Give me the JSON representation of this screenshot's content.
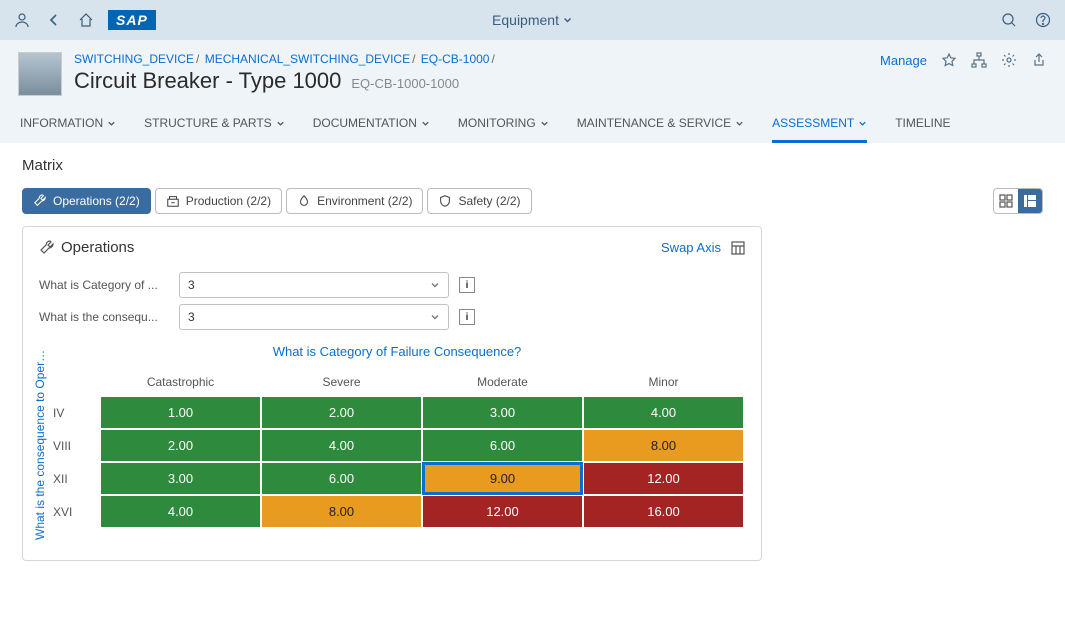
{
  "topbar": {
    "title": "Equipment",
    "logo": "SAP"
  },
  "header": {
    "breadcrumb": [
      "SWITCHING_DEVICE",
      "MECHANICAL_SWITCHING_DEVICE",
      "EQ-CB-1000"
    ],
    "title": "Circuit Breaker - Type 1000",
    "subtitle": "EQ-CB-1000-1000",
    "manage_label": "Manage"
  },
  "nav": {
    "tabs": [
      {
        "label": "INFORMATION",
        "chevron": true
      },
      {
        "label": "STRUCTURE & PARTS",
        "chevron": true
      },
      {
        "label": "DOCUMENTATION",
        "chevron": true
      },
      {
        "label": "MONITORING",
        "chevron": true
      },
      {
        "label": "MAINTENANCE & SERVICE",
        "chevron": true
      },
      {
        "label": "ASSESSMENT",
        "chevron": true,
        "active": true
      },
      {
        "label": "TIMELINE",
        "chevron": false
      }
    ]
  },
  "section": {
    "title": "Matrix",
    "segments": [
      {
        "label": "Operations (2/2)",
        "active": true
      },
      {
        "label": "Production (2/2)"
      },
      {
        "label": "Environment (2/2)"
      },
      {
        "label": "Safety (2/2)"
      }
    ]
  },
  "card": {
    "title": "Operations",
    "swap_label": "Swap Axis",
    "filters": [
      {
        "label": "What is Category of ...",
        "value": "3"
      },
      {
        "label": "What is the consequ...",
        "value": "3"
      }
    ],
    "x_axis_label": "What is Category of Failure Consequence?",
    "y_axis_label": "What is the consequence to Opera...",
    "columns": [
      "Catastrophic",
      "Severe",
      "Moderate",
      "Minor"
    ],
    "rows": [
      "IV",
      "VIII",
      "XII",
      "XVI"
    ],
    "cells": [
      [
        {
          "v": "1.00",
          "c": "#2e8b3d",
          "t": "#fff"
        },
        {
          "v": "2.00",
          "c": "#2e8b3d",
          "t": "#fff"
        },
        {
          "v": "3.00",
          "c": "#2e8b3d",
          "t": "#fff"
        },
        {
          "v": "4.00",
          "c": "#2e8b3d",
          "t": "#fff"
        }
      ],
      [
        {
          "v": "2.00",
          "c": "#2e8b3d",
          "t": "#fff"
        },
        {
          "v": "4.00",
          "c": "#2e8b3d",
          "t": "#fff"
        },
        {
          "v": "6.00",
          "c": "#2e8b3d",
          "t": "#fff"
        },
        {
          "v": "8.00",
          "c": "#e89b1f",
          "t": "#222"
        }
      ],
      [
        {
          "v": "3.00",
          "c": "#2e8b3d",
          "t": "#fff"
        },
        {
          "v": "6.00",
          "c": "#2e8b3d",
          "t": "#fff"
        },
        {
          "v": "9.00",
          "c": "#e89b1f",
          "t": "#222",
          "sel": true
        },
        {
          "v": "12.00",
          "c": "#a42424",
          "t": "#fff"
        }
      ],
      [
        {
          "v": "4.00",
          "c": "#2e8b3d",
          "t": "#fff"
        },
        {
          "v": "8.00",
          "c": "#e89b1f",
          "t": "#222"
        },
        {
          "v": "12.00",
          "c": "#a42424",
          "t": "#fff"
        },
        {
          "v": "16.00",
          "c": "#a42424",
          "t": "#fff"
        }
      ]
    ]
  }
}
